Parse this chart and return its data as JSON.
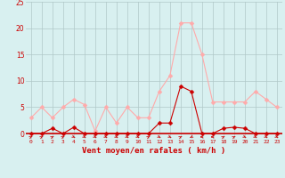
{
  "x": [
    0,
    1,
    2,
    3,
    4,
    5,
    6,
    7,
    8,
    9,
    10,
    11,
    12,
    13,
    14,
    15,
    16,
    17,
    18,
    19,
    20,
    21,
    22,
    23
  ],
  "rafales": [
    3.0,
    5.0,
    3.0,
    5.0,
    6.5,
    5.5,
    0.5,
    5.0,
    2.0,
    5.0,
    3.0,
    3.0,
    8.0,
    11.0,
    21.0,
    21.0,
    15.0,
    6.0,
    6.0,
    6.0,
    6.0,
    8.0,
    6.5,
    5.0
  ],
  "vent_moyen": [
    0,
    0,
    1.0,
    0,
    1.2,
    0,
    0,
    0,
    0,
    0,
    0,
    0,
    2.0,
    2.0,
    9.0,
    8.0,
    0,
    0,
    1.0,
    1.2,
    1.0,
    0,
    0,
    0
  ],
  "rafales_color": "#ffaaaa",
  "vent_color": "#cc0000",
  "bg_color": "#d8f0f0",
  "grid_color": "#b0c8c8",
  "xlabel": "Vent moyen/en rafales ( km/h )",
  "xlabel_color": "#cc0000",
  "tick_color": "#cc0000",
  "ylim": [
    -1,
    25
  ],
  "yticks": [
    0,
    5,
    10,
    15,
    20,
    25
  ],
  "xlim": [
    -0.5,
    23.5
  ],
  "line_width": 0.8,
  "marker_size": 2.5,
  "arrow_angles": [
    45,
    45,
    45,
    45,
    135,
    135,
    135,
    135,
    135,
    135,
    135,
    45,
    135,
    135,
    45,
    225,
    270,
    270,
    45,
    45,
    135,
    135,
    135,
    135
  ]
}
